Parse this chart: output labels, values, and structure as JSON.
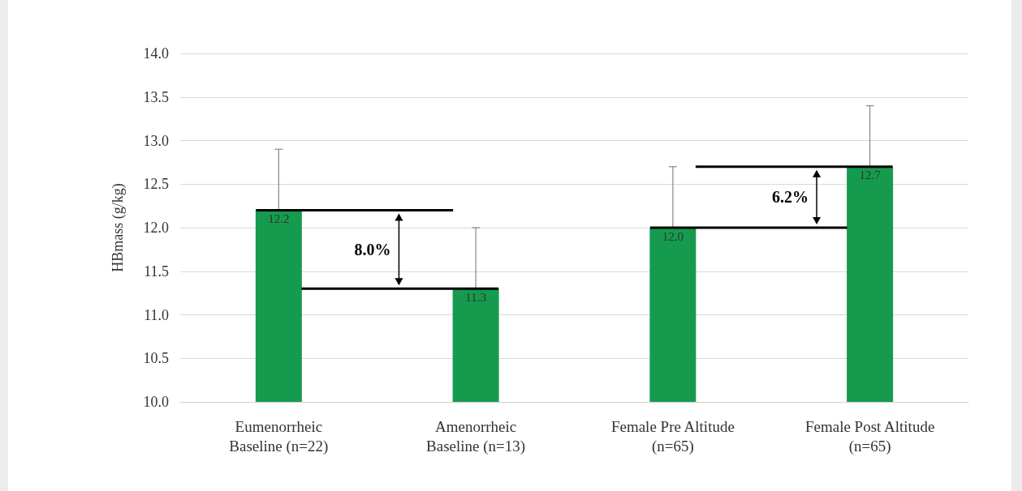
{
  "chart_data": {
    "type": "bar",
    "ylabel": "HBmass (g/kg)",
    "categories": [
      "Eumenorrheic\nBaseline (n=22)",
      "Amenorrheic\nBaseline (n=13)",
      "Female Pre Altitude\n(n=65)",
      "Female Post Altitude\n(n=65)"
    ],
    "values": [
      12.2,
      11.3,
      12.0,
      12.7
    ],
    "color": "#169b4e",
    "value_labels": [
      "12.2",
      "11.3",
      "12.0",
      "12.7"
    ],
    "errors": [
      [
        12.2,
        12.9
      ],
      [
        11.3,
        12.0
      ],
      [
        12.0,
        12.7
      ],
      [
        12.7,
        13.4
      ]
    ],
    "ylim": [
      10,
      14
    ],
    "yticks": [
      {
        "value": 10,
        "label": "10.0"
      },
      {
        "value": 10.5,
        "label": "10.5"
      },
      {
        "value": 11,
        "label": "11.0"
      },
      {
        "value": 11.5,
        "label": "11.5"
      },
      {
        "value": 12,
        "label": "12.0"
      },
      {
        "value": 12.5,
        "label": "12.5"
      },
      {
        "value": 13,
        "label": "13.0"
      },
      {
        "value": 13.5,
        "label": "13.5"
      },
      {
        "value": 14,
        "label": "14.0"
      }
    ],
    "grid": "y",
    "annotations": [
      "8.0%",
      "6.2%"
    ]
  }
}
